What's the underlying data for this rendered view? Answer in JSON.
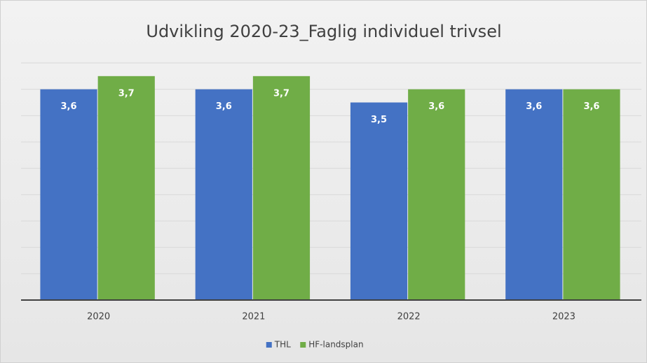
{
  "chart_data": {
    "type": "bar",
    "title": "Udvikling 2020-23_Faglig individuel trivsel",
    "categories": [
      "2020",
      "2021",
      "2022",
      "2023"
    ],
    "series": [
      {
        "name": "THL",
        "color": "#4472c4",
        "values": [
          3.6,
          3.6,
          3.5,
          3.6
        ],
        "value_labels": [
          "3,6",
          "3,6",
          "3,5",
          "3,6"
        ]
      },
      {
        "name": "HF-landsplan",
        "color": "#70ad47",
        "values": [
          3.7,
          3.7,
          3.6,
          3.6
        ],
        "value_labels": [
          "3,7",
          "3,7",
          "3,6",
          "3,6"
        ]
      }
    ],
    "ylim": [
      2.0,
      3.8
    ],
    "yticks": [
      2.0,
      2.2,
      2.4,
      2.6,
      2.8,
      3.0,
      3.2,
      3.4,
      3.6,
      3.8
    ],
    "grid": true,
    "legend": "bottom"
  }
}
